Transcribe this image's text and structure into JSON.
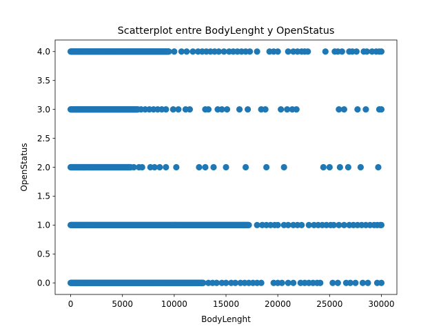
{
  "chart_data": {
    "type": "scatter",
    "title": "Scatterplot entre BodyLenght y OpenStatus",
    "xlabel": "BodyLenght",
    "ylabel": "OpenStatus",
    "xlim": [
      -1500,
      31500
    ],
    "ylim": [
      -0.2,
      4.2
    ],
    "xticks": [
      0,
      5000,
      10000,
      15000,
      20000,
      25000,
      30000
    ],
    "xtick_labels": [
      "0",
      "5000",
      "10000",
      "15000",
      "20000",
      "25000",
      "30000"
    ],
    "yticks": [
      0.0,
      0.5,
      1.0,
      1.5,
      2.0,
      2.5,
      3.0,
      3.5,
      4.0
    ],
    "ytick_labels": [
      "0.0",
      "0.5",
      "1.0",
      "1.5",
      "2.0",
      "2.5",
      "3.0",
      "3.5",
      "4.0"
    ],
    "grid": false,
    "marker_color": "#1f77b4",
    "series": [
      {
        "dense_ranges": [
          {
            "y": 4,
            "x_from": 0,
            "x_to": 9500
          },
          {
            "y": 3,
            "x_from": 0,
            "x_to": 6500
          },
          {
            "y": 2,
            "x_from": 0,
            "x_to": 5800
          },
          {
            "y": 1,
            "x_from": 0,
            "x_to": 17200
          },
          {
            "y": 0,
            "x_from": 0,
            "x_to": 12800
          }
        ],
        "points": [
          {
            "x": 10000,
            "y": 4
          },
          {
            "x": 10700,
            "y": 4
          },
          {
            "x": 11200,
            "y": 4
          },
          {
            "x": 11800,
            "y": 4
          },
          {
            "x": 12300,
            "y": 4
          },
          {
            "x": 12700,
            "y": 4
          },
          {
            "x": 13100,
            "y": 4
          },
          {
            "x": 13500,
            "y": 4
          },
          {
            "x": 13900,
            "y": 4
          },
          {
            "x": 14300,
            "y": 4
          },
          {
            "x": 14800,
            "y": 4
          },
          {
            "x": 15300,
            "y": 4
          },
          {
            "x": 15700,
            "y": 4
          },
          {
            "x": 16100,
            "y": 4
          },
          {
            "x": 16500,
            "y": 4
          },
          {
            "x": 16900,
            "y": 4
          },
          {
            "x": 17300,
            "y": 4
          },
          {
            "x": 18000,
            "y": 4
          },
          {
            "x": 19200,
            "y": 4
          },
          {
            "x": 19600,
            "y": 4
          },
          {
            "x": 20000,
            "y": 4
          },
          {
            "x": 21000,
            "y": 4
          },
          {
            "x": 21500,
            "y": 4
          },
          {
            "x": 21900,
            "y": 4
          },
          {
            "x": 22300,
            "y": 4
          },
          {
            "x": 22600,
            "y": 4
          },
          {
            "x": 22900,
            "y": 4
          },
          {
            "x": 24600,
            "y": 4
          },
          {
            "x": 25500,
            "y": 4
          },
          {
            "x": 25800,
            "y": 4
          },
          {
            "x": 26200,
            "y": 4
          },
          {
            "x": 26900,
            "y": 4
          },
          {
            "x": 27200,
            "y": 4
          },
          {
            "x": 27600,
            "y": 4
          },
          {
            "x": 28300,
            "y": 4
          },
          {
            "x": 28600,
            "y": 4
          },
          {
            "x": 29100,
            "y": 4
          },
          {
            "x": 29500,
            "y": 4
          },
          {
            "x": 29800,
            "y": 4
          },
          {
            "x": 30000,
            "y": 4
          },
          {
            "x": 6800,
            "y": 3
          },
          {
            "x": 7200,
            "y": 3
          },
          {
            "x": 7600,
            "y": 3
          },
          {
            "x": 8000,
            "y": 3
          },
          {
            "x": 8400,
            "y": 3
          },
          {
            "x": 8800,
            "y": 3
          },
          {
            "x": 9200,
            "y": 3
          },
          {
            "x": 9900,
            "y": 3
          },
          {
            "x": 10400,
            "y": 3
          },
          {
            "x": 11100,
            "y": 3
          },
          {
            "x": 11500,
            "y": 3
          },
          {
            "x": 13000,
            "y": 3
          },
          {
            "x": 13300,
            "y": 3
          },
          {
            "x": 14200,
            "y": 3
          },
          {
            "x": 14600,
            "y": 3
          },
          {
            "x": 15100,
            "y": 3
          },
          {
            "x": 16300,
            "y": 3
          },
          {
            "x": 17100,
            "y": 3
          },
          {
            "x": 18400,
            "y": 3
          },
          {
            "x": 18800,
            "y": 3
          },
          {
            "x": 20300,
            "y": 3
          },
          {
            "x": 20900,
            "y": 3
          },
          {
            "x": 21400,
            "y": 3
          },
          {
            "x": 21800,
            "y": 3
          },
          {
            "x": 25900,
            "y": 3
          },
          {
            "x": 26400,
            "y": 3
          },
          {
            "x": 27700,
            "y": 3
          },
          {
            "x": 28500,
            "y": 3
          },
          {
            "x": 29800,
            "y": 3
          },
          {
            "x": 30000,
            "y": 3
          },
          {
            "x": 6100,
            "y": 2
          },
          {
            "x": 6600,
            "y": 2
          },
          {
            "x": 6900,
            "y": 2
          },
          {
            "x": 7700,
            "y": 2
          },
          {
            "x": 8100,
            "y": 2
          },
          {
            "x": 8600,
            "y": 2
          },
          {
            "x": 9200,
            "y": 2
          },
          {
            "x": 10200,
            "y": 2
          },
          {
            "x": 12400,
            "y": 2
          },
          {
            "x": 13000,
            "y": 2
          },
          {
            "x": 13800,
            "y": 2
          },
          {
            "x": 15000,
            "y": 2
          },
          {
            "x": 16900,
            "y": 2
          },
          {
            "x": 18900,
            "y": 2
          },
          {
            "x": 20600,
            "y": 2
          },
          {
            "x": 24400,
            "y": 2
          },
          {
            "x": 25000,
            "y": 2
          },
          {
            "x": 26000,
            "y": 2
          },
          {
            "x": 26800,
            "y": 2
          },
          {
            "x": 28000,
            "y": 2
          },
          {
            "x": 29700,
            "y": 2
          },
          {
            "x": 18000,
            "y": 1
          },
          {
            "x": 18500,
            "y": 1
          },
          {
            "x": 18900,
            "y": 1
          },
          {
            "x": 19300,
            "y": 1
          },
          {
            "x": 19700,
            "y": 1
          },
          {
            "x": 20000,
            "y": 1
          },
          {
            "x": 20600,
            "y": 1
          },
          {
            "x": 21000,
            "y": 1
          },
          {
            "x": 21500,
            "y": 1
          },
          {
            "x": 21900,
            "y": 1
          },
          {
            "x": 22300,
            "y": 1
          },
          {
            "x": 23000,
            "y": 1
          },
          {
            "x": 23500,
            "y": 1
          },
          {
            "x": 23900,
            "y": 1
          },
          {
            "x": 24300,
            "y": 1
          },
          {
            "x": 24700,
            "y": 1
          },
          {
            "x": 25100,
            "y": 1
          },
          {
            "x": 25400,
            "y": 1
          },
          {
            "x": 25900,
            "y": 1
          },
          {
            "x": 26400,
            "y": 1
          },
          {
            "x": 26900,
            "y": 1
          },
          {
            "x": 27300,
            "y": 1
          },
          {
            "x": 27700,
            "y": 1
          },
          {
            "x": 28100,
            "y": 1
          },
          {
            "x": 28500,
            "y": 1
          },
          {
            "x": 28900,
            "y": 1
          },
          {
            "x": 29300,
            "y": 1
          },
          {
            "x": 29600,
            "y": 1
          },
          {
            "x": 29900,
            "y": 1
          },
          {
            "x": 30000,
            "y": 1
          },
          {
            "x": 13300,
            "y": 0
          },
          {
            "x": 13700,
            "y": 0
          },
          {
            "x": 14100,
            "y": 0
          },
          {
            "x": 14600,
            "y": 0
          },
          {
            "x": 15000,
            "y": 0
          },
          {
            "x": 15500,
            "y": 0
          },
          {
            "x": 15900,
            "y": 0
          },
          {
            "x": 16400,
            "y": 0
          },
          {
            "x": 16800,
            "y": 0
          },
          {
            "x": 17200,
            "y": 0
          },
          {
            "x": 17600,
            "y": 0
          },
          {
            "x": 18000,
            "y": 0
          },
          {
            "x": 18400,
            "y": 0
          },
          {
            "x": 19600,
            "y": 0
          },
          {
            "x": 20000,
            "y": 0
          },
          {
            "x": 20400,
            "y": 0
          },
          {
            "x": 21000,
            "y": 0
          },
          {
            "x": 21500,
            "y": 0
          },
          {
            "x": 22200,
            "y": 0
          },
          {
            "x": 22600,
            "y": 0
          },
          {
            "x": 23000,
            "y": 0
          },
          {
            "x": 23400,
            "y": 0
          },
          {
            "x": 23800,
            "y": 0
          },
          {
            "x": 24100,
            "y": 0
          },
          {
            "x": 25300,
            "y": 0
          },
          {
            "x": 25800,
            "y": 0
          },
          {
            "x": 26600,
            "y": 0
          },
          {
            "x": 27000,
            "y": 0
          },
          {
            "x": 27500,
            "y": 0
          },
          {
            "x": 28200,
            "y": 0
          },
          {
            "x": 28700,
            "y": 0
          },
          {
            "x": 29600,
            "y": 0
          },
          {
            "x": 30000,
            "y": 0
          }
        ]
      }
    ]
  }
}
